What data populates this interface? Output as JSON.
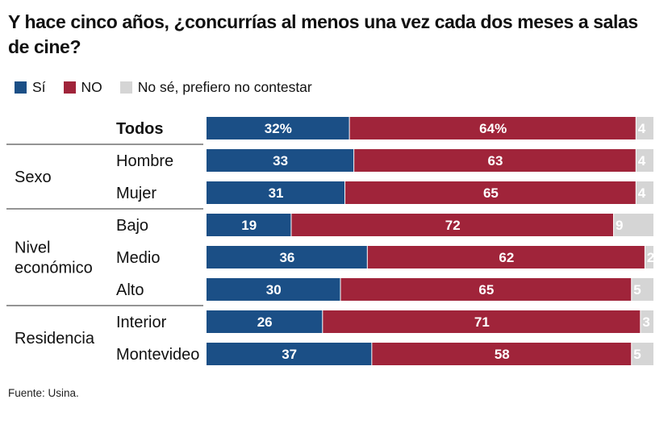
{
  "title": "Y hace cinco años, ¿concurrías al menos una vez cada dos meses a salas de cine?",
  "legend": [
    {
      "label": "Sí",
      "color": "#1b4f86"
    },
    {
      "label": "NO",
      "color": "#a0243a"
    },
    {
      "label": "No sé, prefiero no contestar",
      "color": "#d5d5d5"
    }
  ],
  "source": "Fuente: Usina.",
  "chart_data": {
    "type": "bar",
    "orientation": "horizontal",
    "stacked": true,
    "xlim": [
      0,
      100
    ],
    "categories": [
      "Todos",
      "Hombre",
      "Mujer",
      "Bajo",
      "Medio",
      "Alto",
      "Interior",
      "Montevideo"
    ],
    "groups": [
      {
        "label_lines": [
          "Sexo"
        ],
        "rows": [
          "Hombre",
          "Mujer"
        ]
      },
      {
        "label_lines": [
          "Nivel",
          "económico"
        ],
        "rows": [
          "Bajo",
          "Medio",
          "Alto"
        ]
      },
      {
        "label_lines": [
          "Residencia"
        ],
        "rows": [
          "Interior",
          "Montevideo"
        ]
      }
    ],
    "series": [
      {
        "name": "Sí",
        "color": "#1b4f86",
        "values": [
          32,
          33,
          31,
          19,
          36,
          30,
          26,
          37
        ]
      },
      {
        "name": "NO",
        "color": "#a0243a",
        "values": [
          64,
          63,
          65,
          72,
          62,
          65,
          71,
          58
        ]
      },
      {
        "name": "No sé, prefiero no contestar",
        "color": "#d5d5d5",
        "values": [
          4,
          4,
          4,
          9,
          2,
          5,
          3,
          5
        ]
      }
    ],
    "value_labels": [
      [
        "32%",
        "64%",
        "4"
      ],
      [
        "33",
        "63",
        "4"
      ],
      [
        "31",
        "65",
        "4"
      ],
      [
        "19",
        "72",
        "9"
      ],
      [
        "36",
        "62",
        "2"
      ],
      [
        "30",
        "65",
        "5"
      ],
      [
        "26",
        "71",
        "3"
      ],
      [
        "37",
        "58",
        "5"
      ]
    ]
  }
}
